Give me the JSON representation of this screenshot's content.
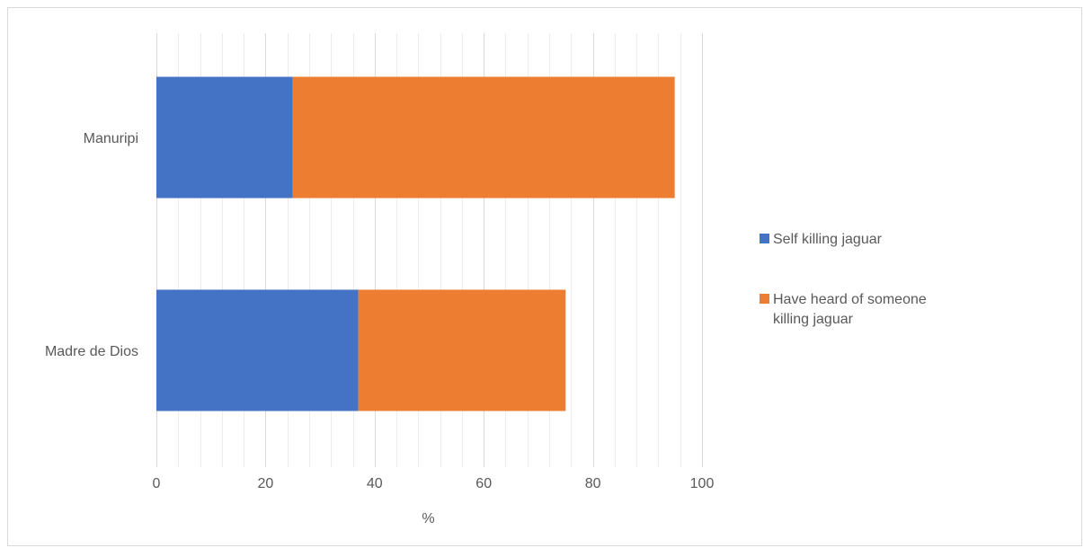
{
  "chart_data": {
    "type": "bar",
    "orientation": "horizontal",
    "stacked": true,
    "categories": [
      "Manuripi",
      "Madre de Dios"
    ],
    "series": [
      {
        "name": "Self killing jaguar",
        "values": [
          25,
          37
        ],
        "color": "#4472c4"
      },
      {
        "name": "Have heard of someone killing jaguar",
        "values": [
          70,
          38
        ],
        "color": "#ed7d31"
      }
    ],
    "xlabel": "%",
    "ylabel": "",
    "xlim": [
      0,
      100
    ],
    "xticks": [
      0,
      20,
      40,
      60,
      80,
      100
    ],
    "grid": "vertical major and minor",
    "legend_position": "right"
  }
}
